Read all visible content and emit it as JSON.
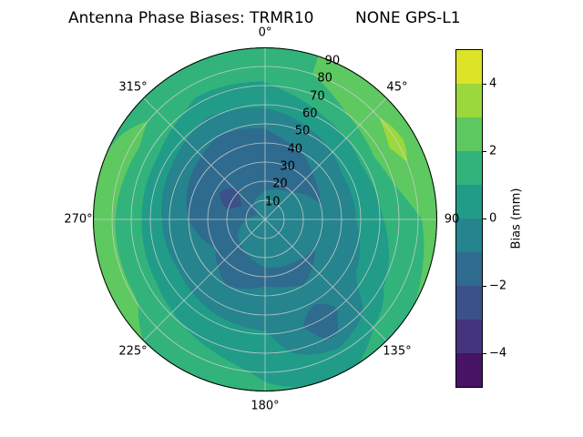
{
  "title": {
    "left": "Antenna Phase Biases: TRMR10",
    "right": "NONE GPS-L1"
  },
  "polar_plot": {
    "angular_labels": [
      "0°",
      "45°",
      "90",
      "135°",
      "180°",
      "225°",
      "270°",
      "315°"
    ],
    "radial_labels": [
      "10",
      "20",
      "30",
      "40",
      "50",
      "60",
      "70",
      "80",
      "90"
    ]
  },
  "colorbar": {
    "label": "Bias (mm)",
    "ticks": [
      "4",
      "2",
      "0",
      "−2",
      "−4"
    ],
    "tick_values": [
      4,
      2,
      0,
      -2,
      -4
    ],
    "vmin": -5,
    "vmax": 5,
    "colormap": "viridis"
  },
  "chart_data": {
    "type": "heatmap",
    "projection": "polar",
    "title": "Antenna Phase Biases: TRMR10        NONE GPS-L1",
    "value_label": "Bias (mm)",
    "value_range": [
      -5,
      5
    ],
    "levels_step_mm": 1,
    "azimuth_deg": [
      0,
      30,
      60,
      90,
      120,
      150,
      180,
      210,
      240,
      270,
      300,
      330
    ],
    "zenith_deg": [
      0,
      10,
      20,
      30,
      40,
      50,
      60,
      70,
      80,
      90
    ],
    "values_mm": [
      [
        -0.5,
        -0.8,
        -1.2,
        -1.4,
        -1.3,
        -0.9,
        0.2,
        0.9,
        1.4,
        1.1
      ],
      [
        -0.5,
        -0.7,
        -1.1,
        -1.3,
        -1.0,
        -0.2,
        0.8,
        1.8,
        2.4,
        2.6
      ],
      [
        -0.5,
        -0.6,
        -0.9,
        -1.1,
        -0.6,
        0.3,
        1.2,
        2.6,
        3.4,
        2.2
      ],
      [
        -0.5,
        -0.5,
        -0.7,
        -0.9,
        -0.6,
        0.2,
        0.9,
        1.4,
        1.9,
        2.4
      ],
      [
        -0.5,
        -0.5,
        -0.7,
        -1.0,
        -0.9,
        -0.4,
        0.4,
        0.9,
        1.6,
        2.0
      ],
      [
        -0.5,
        -0.6,
        -0.8,
        -1.1,
        -1.0,
        -0.9,
        -1.6,
        -1.2,
        0.4,
        0.9
      ],
      [
        -0.5,
        -0.6,
        -0.9,
        -1.1,
        -0.9,
        -0.5,
        0.1,
        0.6,
        0.9,
        1.1
      ],
      [
        -0.5,
        -0.7,
        -1.0,
        -1.2,
        -1.0,
        -0.4,
        0.3,
        0.9,
        1.4,
        1.7
      ],
      [
        -0.5,
        -0.8,
        -1.1,
        -1.0,
        -0.8,
        -0.2,
        0.6,
        1.3,
        2.1,
        2.3
      ],
      [
        -0.5,
        -1.0,
        -1.4,
        -1.2,
        -1.0,
        -0.4,
        0.6,
        1.5,
        2.1,
        2.4
      ],
      [
        -0.5,
        -1.6,
        -2.6,
        -1.8,
        -1.3,
        -0.7,
        0.4,
        1.6,
        2.3,
        1.9
      ],
      [
        -0.5,
        -0.9,
        -1.6,
        -1.6,
        -1.4,
        -1.0,
        -0.1,
        0.8,
        1.4,
        1.2
      ]
    ],
    "colormap": "viridis",
    "colormap_stops": [
      "#440154",
      "#482475",
      "#404387",
      "#345e8d",
      "#29788e",
      "#20908c",
      "#22a784",
      "#42be71",
      "#79d151",
      "#bdde26",
      "#fde725"
    ],
    "grid": "on",
    "angular_ticks_deg": [
      0,
      45,
      90,
      135,
      180,
      225,
      270,
      315
    ],
    "radial_ticks_deg": [
      10,
      20,
      30,
      40,
      50,
      60,
      70,
      80,
      90
    ]
  }
}
